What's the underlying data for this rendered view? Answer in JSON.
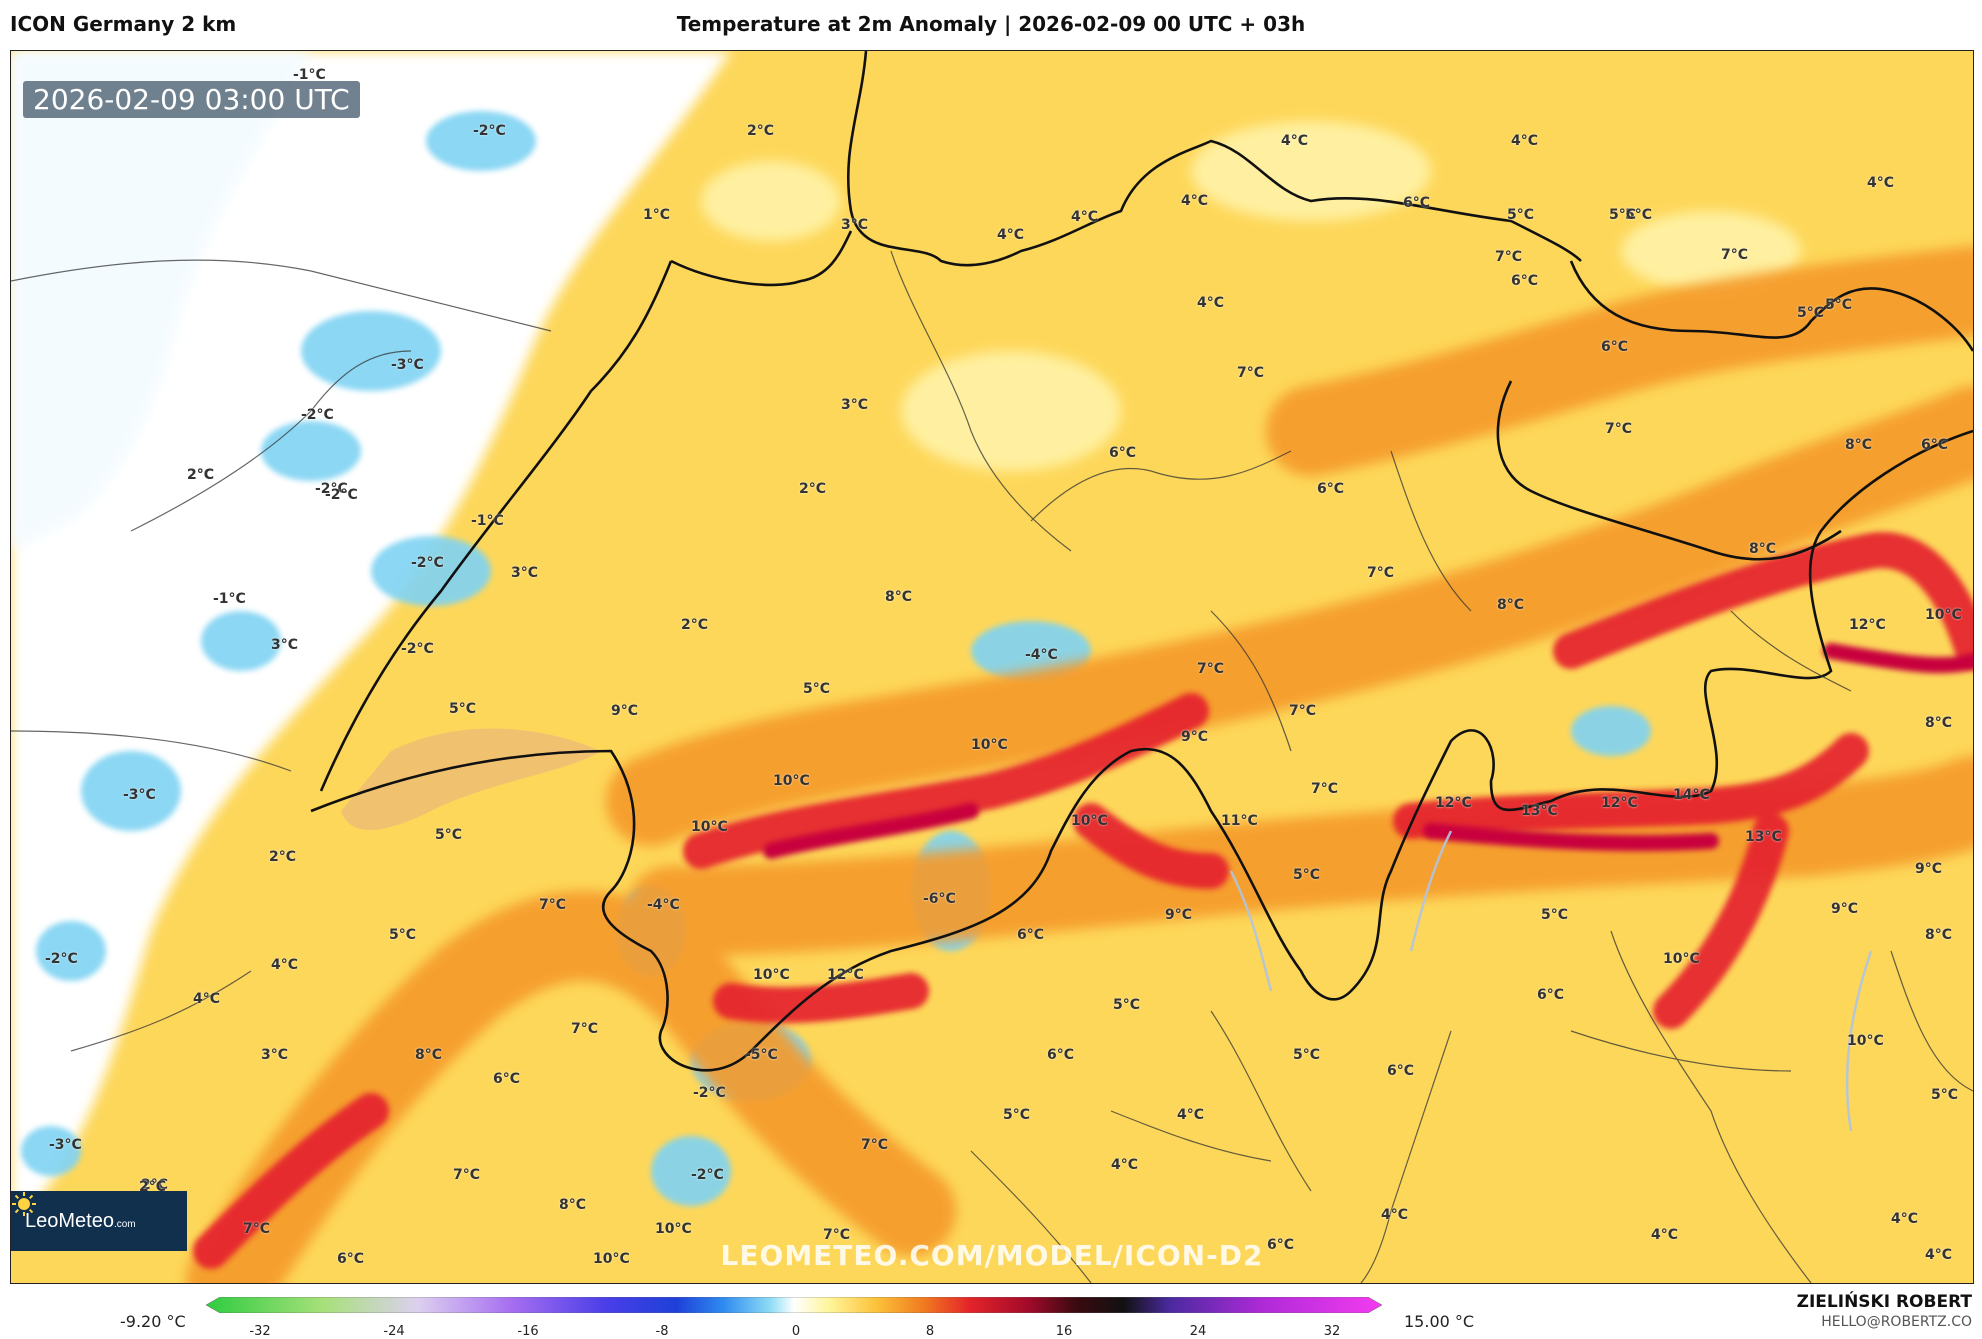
{
  "header": {
    "model": "ICON Germany 2 km",
    "title": "Temperature at 2m Anomaly | 2026-02-09 00 UTC + 03h"
  },
  "map": {
    "timestamp": "2026-02-09 03:00 UTC",
    "watermark": "LEOMETEO.COM/MODEL/ICON-D2",
    "logo": {
      "brand": "LeoMeteo",
      "suffix": ".com"
    },
    "labels": [
      {
        "text": "-1°C"
      },
      {
        "text": "-2°C"
      },
      {
        "text": "2°C"
      },
      {
        "text": "1°C"
      },
      {
        "text": "3°C"
      },
      {
        "text": "4°C"
      },
      {
        "text": "4°C"
      },
      {
        "text": "4°C"
      },
      {
        "text": "4°C"
      },
      {
        "text": "6°C"
      },
      {
        "text": "5°C"
      },
      {
        "text": "4°C"
      },
      {
        "text": "5°C"
      },
      {
        "text": "7°C"
      },
      {
        "text": "6°C"
      },
      {
        "text": "7°C"
      },
      {
        "text": "5°C"
      },
      {
        "text": "5°C"
      },
      {
        "text": "-3°C"
      },
      {
        "text": "-2°C"
      },
      {
        "text": "4°C"
      },
      {
        "text": "6°C"
      },
      {
        "text": "7°C"
      },
      {
        "text": "4°C"
      },
      {
        "text": "2°C"
      },
      {
        "text": "-2°C"
      },
      {
        "text": "-1°C"
      },
      {
        "text": "3°C"
      },
      {
        "text": "6°C"
      },
      {
        "text": "7°C"
      },
      {
        "text": "8°C"
      },
      {
        "text": "6°C"
      },
      {
        "text": "5°C"
      },
      {
        "text": "-2°C"
      },
      {
        "text": "2°C"
      },
      {
        "text": "2°C"
      },
      {
        "text": "6°C"
      },
      {
        "text": "-2°C"
      },
      {
        "text": "3°C"
      },
      {
        "text": "-1°C"
      },
      {
        "text": "7°C"
      },
      {
        "text": "8°C"
      },
      {
        "text": "8°C"
      },
      {
        "text": "3°C"
      },
      {
        "text": "-2°C"
      },
      {
        "text": "2°C"
      },
      {
        "text": "8°C"
      },
      {
        "text": "-4°C"
      },
      {
        "text": "5°C"
      },
      {
        "text": "7°C"
      },
      {
        "text": "12°C"
      },
      {
        "text": "10°C"
      },
      {
        "text": "5°C"
      },
      {
        "text": "9°C"
      },
      {
        "text": "7°C"
      },
      {
        "text": "9°C"
      },
      {
        "text": "8°C"
      },
      {
        "text": "-3°C"
      },
      {
        "text": "10°C"
      },
      {
        "text": "7°C"
      },
      {
        "text": "10°C"
      },
      {
        "text": "12°C"
      },
      {
        "text": "13°C"
      },
      {
        "text": "12°C"
      },
      {
        "text": "14°C"
      },
      {
        "text": "2°C"
      },
      {
        "text": "5°C"
      },
      {
        "text": "10°C"
      },
      {
        "text": "10°C"
      },
      {
        "text": "11°C"
      },
      {
        "text": "13°C"
      },
      {
        "text": "9°C"
      },
      {
        "text": "5°C"
      },
      {
        "text": "7°C"
      },
      {
        "text": "-4°C"
      },
      {
        "text": "-6°C"
      },
      {
        "text": "9°C"
      },
      {
        "text": "5°C"
      },
      {
        "text": "9°C"
      },
      {
        "text": "-2°C"
      },
      {
        "text": "5°C"
      },
      {
        "text": "4°C"
      },
      {
        "text": "6°C"
      },
      {
        "text": "10°C"
      },
      {
        "text": "8°C"
      },
      {
        "text": "4°C"
      },
      {
        "text": "10°C"
      },
      {
        "text": "12°C"
      },
      {
        "text": "5°C"
      },
      {
        "text": "6°C"
      },
      {
        "text": "3°C"
      },
      {
        "text": "7°C"
      },
      {
        "text": "6°C"
      },
      {
        "text": "-5°C"
      },
      {
        "text": "5°C"
      },
      {
        "text": "6°C"
      },
      {
        "text": "10°C"
      },
      {
        "text": "-3°C"
      },
      {
        "text": "2°C"
      },
      {
        "text": "-2°C"
      },
      {
        "text": "8°C"
      },
      {
        "text": "5°C"
      },
      {
        "text": "7°C"
      },
      {
        "text": "6°C"
      },
      {
        "text": "4°C"
      },
      {
        "text": "4°C"
      },
      {
        "text": "5°C"
      },
      {
        "text": "7°C"
      },
      {
        "text": "8°C"
      },
      {
        "text": "10°C"
      },
      {
        "text": "4°C"
      },
      {
        "text": "4°C"
      },
      {
        "text": "-2°C"
      },
      {
        "text": "4°C"
      },
      {
        "text": "6°C"
      },
      {
        "text": "2°C"
      },
      {
        "text": "7°C"
      },
      {
        "text": "6°C"
      },
      {
        "text": "10°C"
      },
      {
        "text": "7°C"
      },
      {
        "text": "4°C"
      }
    ]
  },
  "legend": {
    "min_value": "-9.20 °C",
    "max_value": "15.00 °C",
    "ticks": [
      "-32",
      "-24",
      "-16",
      "-8",
      "0",
      "8",
      "16",
      "24",
      "32"
    ]
  },
  "author": {
    "name": "ZIELIŃSKI ROBERT",
    "email": "HELLO@ROBERTZ.CO"
  },
  "colors": {
    "warm_max": "#d9063f",
    "warm_mid": "#f07b1f",
    "warm_low": "#fdd13a",
    "neutral": "#ffffff",
    "cold": "#5cc9f0"
  }
}
